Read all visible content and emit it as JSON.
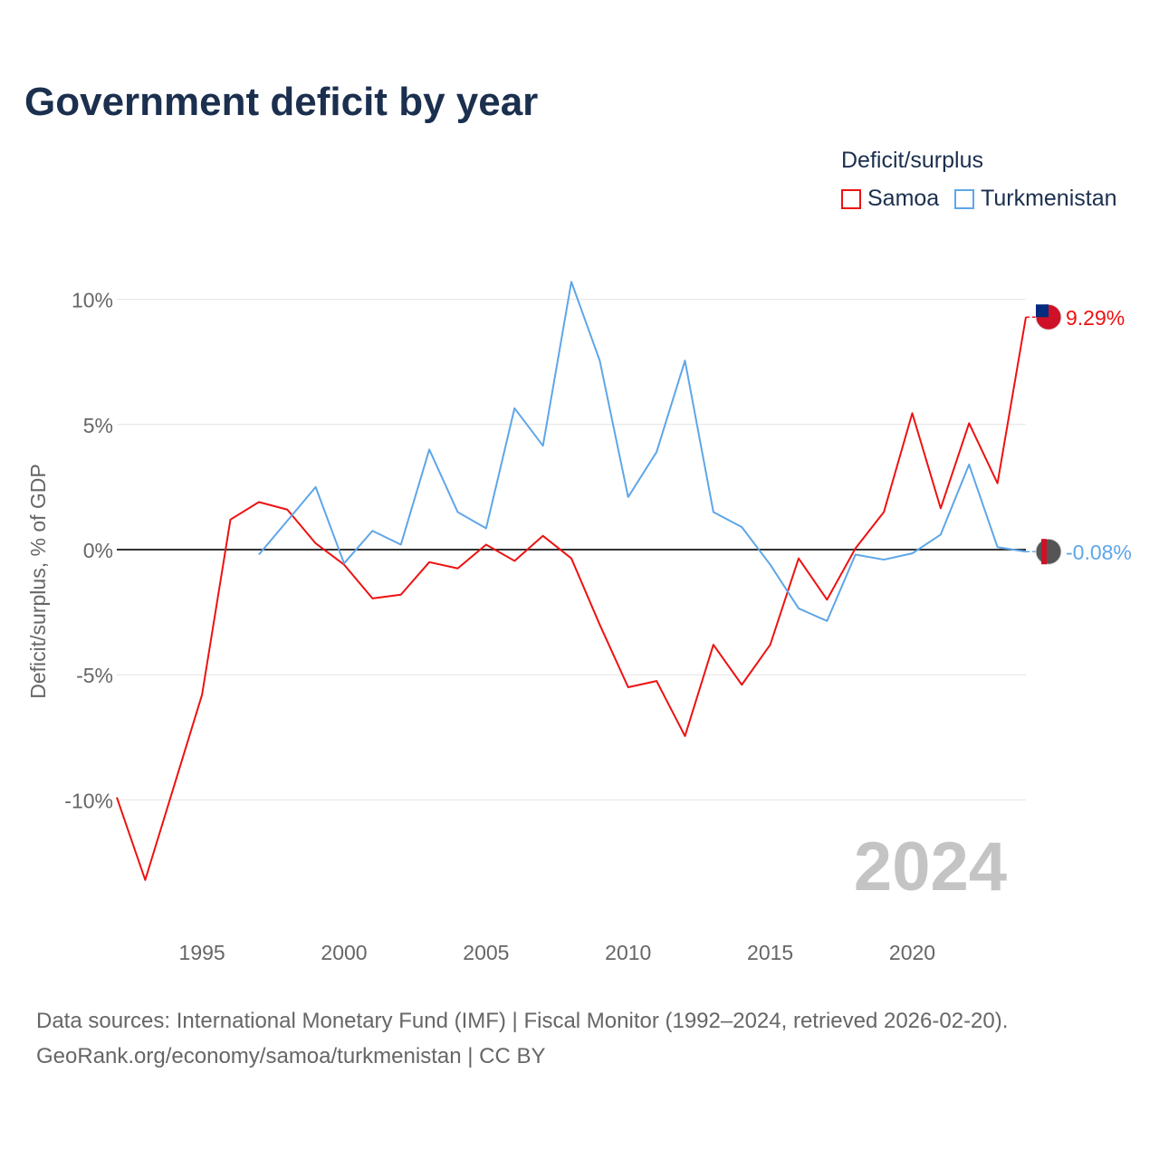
{
  "chart_data": {
    "type": "line",
    "title": "Government deficit by year",
    "ylabel": "Deficit/surplus, % of GDP",
    "xlabel": "",
    "ylim": [
      -14,
      11
    ],
    "xlim": [
      1992,
      2024
    ],
    "y_ticks": [
      10,
      5,
      0,
      -5,
      -10
    ],
    "y_tick_labels": [
      "10%",
      "5%",
      "0%",
      "-5%",
      "-10%"
    ],
    "x_ticks": [
      1995,
      2000,
      2005,
      2010,
      2015,
      2020
    ],
    "x_tick_labels": [
      "1995",
      "2000",
      "2005",
      "2010",
      "2015",
      "2020"
    ],
    "grid": true,
    "legend": {
      "title": "Deficit/surplus",
      "placement": "top-right"
    },
    "year_watermark": "2024",
    "series": [
      {
        "name": "Samoa",
        "color": "#ee1111",
        "end_label": "9.29%",
        "x": [
          1992,
          1993,
          1994,
          1995,
          1996,
          1997,
          1998,
          1999,
          2000,
          2001,
          2002,
          2003,
          2004,
          2005,
          2006,
          2007,
          2008,
          2009,
          2010,
          2011,
          2012,
          2013,
          2014,
          2015,
          2016,
          2017,
          2018,
          2019,
          2020,
          2021,
          2022,
          2023,
          2024
        ],
        "values": [
          -9.9,
          -13.2,
          -9.5,
          -5.8,
          1.2,
          1.9,
          1.6,
          0.25,
          -0.6,
          -1.95,
          -1.8,
          -0.5,
          -0.75,
          0.2,
          -0.45,
          0.55,
          -0.35,
          -3.0,
          -5.5,
          -5.25,
          -7.45,
          -3.8,
          -5.4,
          -3.8,
          -0.35,
          -2.0,
          0.05,
          1.5,
          5.45,
          1.65,
          5.05,
          2.65,
          9.29
        ]
      },
      {
        "name": "Turkmenistan",
        "color": "#5ea6e8",
        "end_label": "-0.08%",
        "x": [
          1997,
          1998,
          1999,
          2000,
          2001,
          2002,
          2003,
          2004,
          2005,
          2006,
          2007,
          2008,
          2009,
          2010,
          2011,
          2012,
          2013,
          2014,
          2015,
          2016,
          2017,
          2018,
          2019,
          2020,
          2021,
          2022,
          2023,
          2024
        ],
        "values": [
          -0.2,
          1.15,
          2.5,
          -0.55,
          0.75,
          0.2,
          4.0,
          1.5,
          0.85,
          5.65,
          4.15,
          10.7,
          7.55,
          2.1,
          3.9,
          7.55,
          1.5,
          0.9,
          -0.6,
          -2.35,
          -2.85,
          -0.2,
          -0.4,
          -0.15,
          0.6,
          3.4,
          0.1,
          -0.08
        ]
      }
    ]
  },
  "source": {
    "line1": "Data sources: International Monetary Fund (IMF) | Fiscal Monitor (1992–2024, retrieved 2026-02-20).",
    "line2": "GeoRank.org/economy/samoa/turkmenistan | CC BY"
  }
}
